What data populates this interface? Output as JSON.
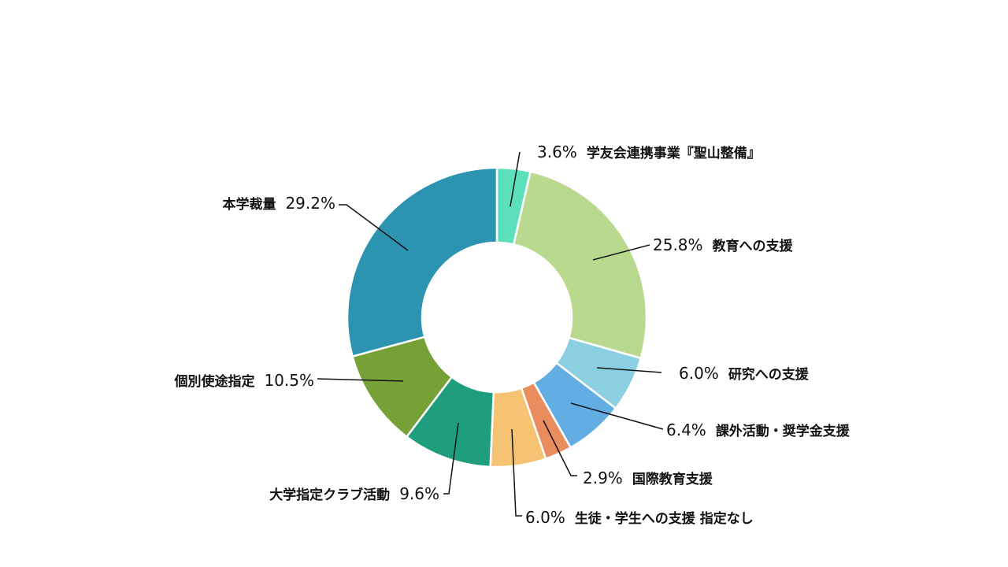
{
  "chart_data": {
    "type": "pie",
    "variant": "donut",
    "title": "",
    "slices": [
      {
        "label": "学友会連携事業『聖山整備』",
        "value": 3.6,
        "value_label": "3.6%",
        "color": "#5ce0bc"
      },
      {
        "label": "教育への支援",
        "value": 25.8,
        "value_label": "25.8%",
        "color": "#b9da8e"
      },
      {
        "label": "研究への支援",
        "value": 6.0,
        "value_label": "6.0%",
        "color": "#8bd0e2"
      },
      {
        "label": "課外活動・奨学金支援",
        "value": 6.4,
        "value_label": "6.4%",
        "color": "#62aee3"
      },
      {
        "label": "国際教育支援",
        "value": 2.9,
        "value_label": "2.9%",
        "color": "#e98c5e"
      },
      {
        "label": "生徒・学生への支援 指定なし",
        "value": 6.0,
        "value_label": "6.0%",
        "color": "#f6c373"
      },
      {
        "label": "大学指定クラブ活動",
        "value": 9.6,
        "value_label": "9.6%",
        "color": "#1e9e7c"
      },
      {
        "label": "個別使途指定",
        "value": 10.5,
        "value_label": "10.5%",
        "color": "#76a137"
      },
      {
        "label": "本学裁量",
        "value": 29.2,
        "value_label": "29.2%",
        "color": "#2c94b0"
      }
    ]
  }
}
